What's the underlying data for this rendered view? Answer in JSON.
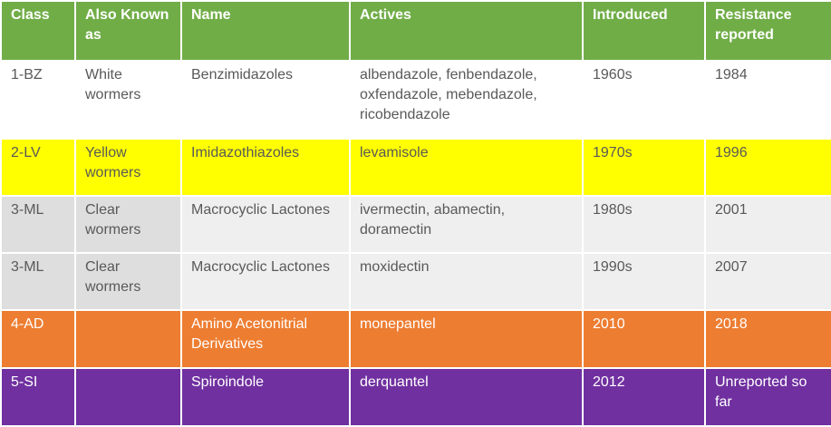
{
  "table": {
    "header": [
      "Class",
      "Also Known as",
      "Name",
      "Actives",
      "Introduced",
      "Resistance reported"
    ],
    "rows": [
      [
        "1-BZ",
        "White wormers",
        "Benzimidazoles",
        "albendazole, fenbendazole, oxfendazole, mebendazole, ricobendazole",
        "1960s",
        "1984"
      ],
      [
        "2-LV",
        "Yellow wormers",
        "Imidazothiazoles",
        "levamisole",
        "1970s",
        "1996"
      ],
      [
        "3-ML",
        "Clear wormers",
        "Macrocyclic Lactones",
        "ivermectin, abamectin, doramectin",
        "1980s",
        "2001"
      ],
      [
        "3-ML",
        "Clear wormers",
        "Macrocyclic Lactones",
        "moxidectin",
        "1990s",
        "2007"
      ],
      [
        "4-AD",
        null,
        "Amino Acetonitrial Derivatives",
        "monepantel",
        "2010",
        "2018"
      ],
      [
        "5-SI",
        null,
        "Spiroindole",
        "derquantel",
        "2012",
        "Unreported so far"
      ]
    ]
  }
}
